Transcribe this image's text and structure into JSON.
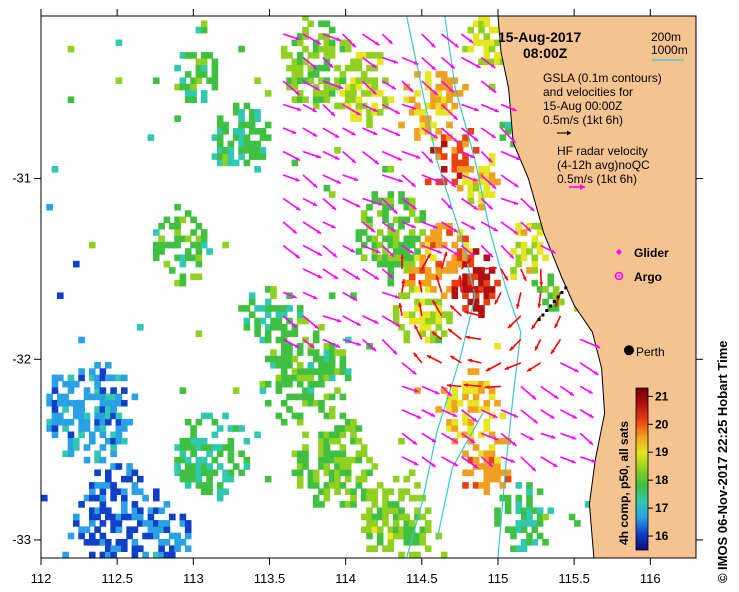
{
  "title": {
    "date": "15-Aug-2017",
    "time": "08:00Z"
  },
  "depth_legend": {
    "shallow": "200m",
    "deep": "1000m",
    "color": "#39c6d0"
  },
  "gsla_legend": {
    "line1": "GSLA (0.1m contours)",
    "line2": "and velocities for",
    "line3": "15-Aug 00:00Z",
    "scale": "0.5m/s (1kt 6h)"
  },
  "hf_legend": {
    "line1": "HF radar velocity",
    "line2": "(4-12h avg)noQC",
    "scale": "0.5m/s (1kt 6h)",
    "color": "#ff00ff"
  },
  "markers": {
    "glider": {
      "label": "Glider",
      "color": "#ff00ff"
    },
    "argo": {
      "label": "Argo",
      "color": "#ff00ff"
    }
  },
  "place": {
    "name": "Perth",
    "lon": 115.86,
    "lat": -31.95
  },
  "x_axis": {
    "ticks": [
      "112",
      "112.5",
      "113",
      "113.5",
      "114",
      "114.5",
      "115",
      "115.5",
      "116"
    ],
    "min": 112,
    "max": 116.3
  },
  "y_axis": {
    "ticks": [
      "-31",
      "-32",
      "-33"
    ],
    "min": -33.1,
    "max": -30.1
  },
  "colorbar": {
    "label": "4h comp, p50, all sats",
    "ticks": [
      "21",
      "20",
      "19",
      "18",
      "17",
      "16"
    ],
    "min": 15.5,
    "max": 21.3,
    "stops": [
      "#0a0a78",
      "#1040c8",
      "#2aa0e6",
      "#30c8b0",
      "#40c040",
      "#90d020",
      "#e6e620",
      "#f0a020",
      "#e84010",
      "#b01010",
      "#700000"
    ]
  },
  "credit": "IMOS 06-Nov-2017 22:25 Hobart Time",
  "copyright": "©",
  "land_color": "#f5c38f",
  "arrow_colors": {
    "hf": "#ff00ff",
    "strong": "#ff0000"
  }
}
